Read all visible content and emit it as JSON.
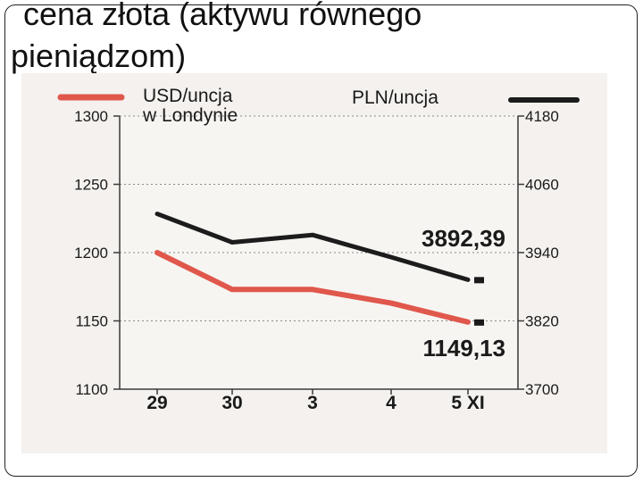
{
  "slide": {
    "title_line_1": "cena złota (aktywu równego",
    "title_line_2": "pieniądzom)"
  },
  "colors": {
    "usd_series": "#e0574c",
    "pln_series": "#1c1c1c",
    "paper": "#f4f1ee"
  },
  "chart_data": {
    "type": "line",
    "categories": [
      "29",
      "30",
      "3",
      "4",
      "5 XI"
    ],
    "series": [
      {
        "name": "USD/uncja w Londynie",
        "name_lines": [
          "USD/uncja",
          "w Londynie"
        ],
        "axis": "left",
        "values": [
          1200,
          1173,
          1173,
          1163,
          1149.13
        ],
        "end_label": "1149,13"
      },
      {
        "name": "PLN/uncja",
        "name_lines": [
          "PLN/uncja"
        ],
        "axis": "right",
        "values": [
          4008,
          3958,
          3971,
          3932,
          3892.39
        ],
        "end_label": "3892,39"
      }
    ],
    "y_left": {
      "ylim": [
        1100,
        1300
      ],
      "ticks": [
        "1100",
        "1150",
        "1200",
        "1250",
        "1300"
      ]
    },
    "y_right": {
      "ylim": [
        3700,
        4180
      ],
      "ticks": [
        "3700",
        "3820",
        "3940",
        "4060",
        "4180"
      ]
    },
    "grid": true,
    "legend": "top"
  }
}
